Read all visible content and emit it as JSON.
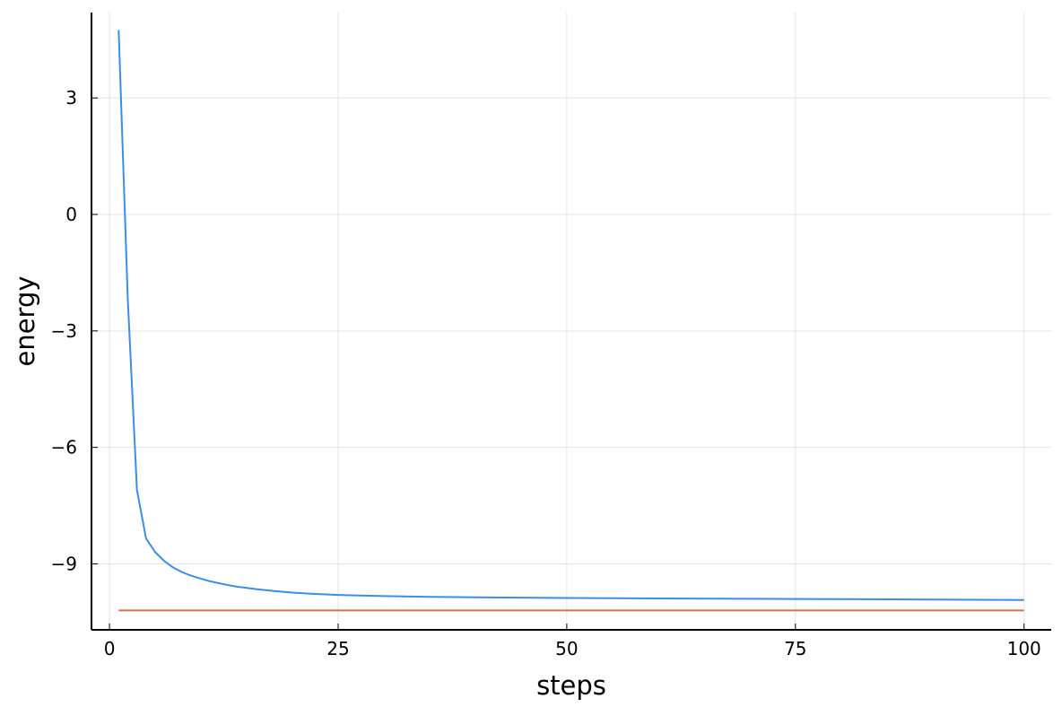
{
  "chart_data": {
    "type": "line",
    "title": "",
    "xlabel": "steps",
    "ylabel": "energy",
    "xlim": [
      -1.97,
      102.97
    ],
    "ylim": [
      -10.7,
      5.2
    ],
    "xticks": [
      0,
      25,
      50,
      75,
      100
    ],
    "xtick_labels": [
      "0",
      "25",
      "50",
      "75",
      "100"
    ],
    "yticks": [
      -9,
      -6,
      -3,
      0,
      3
    ],
    "ytick_labels": [
      "−9",
      "−6",
      "−3",
      "0",
      "3"
    ],
    "grid": true,
    "legend": "none",
    "series": [
      {
        "color": "#3b8ee6",
        "x": [
          1,
          2,
          3,
          4,
          5,
          6,
          7,
          8,
          9,
          10,
          11,
          12,
          13,
          14,
          15,
          16,
          18,
          20,
          22,
          25,
          28,
          30,
          35,
          40,
          45,
          50,
          60,
          70,
          80,
          90,
          100
        ],
        "y": [
          4.75,
          -2.2,
          -7.1,
          -8.35,
          -8.7,
          -8.93,
          -9.1,
          -9.22,
          -9.31,
          -9.38,
          -9.45,
          -9.5,
          -9.55,
          -9.59,
          -9.62,
          -9.65,
          -9.7,
          -9.74,
          -9.77,
          -9.8,
          -9.82,
          -9.83,
          -9.85,
          -9.86,
          -9.87,
          -9.88,
          -9.89,
          -9.9,
          -9.91,
          -9.92,
          -9.93
        ]
      },
      {
        "color": "#e26f46",
        "x": [
          1,
          100
        ],
        "y": [
          -10.2,
          -10.2
        ]
      }
    ]
  }
}
